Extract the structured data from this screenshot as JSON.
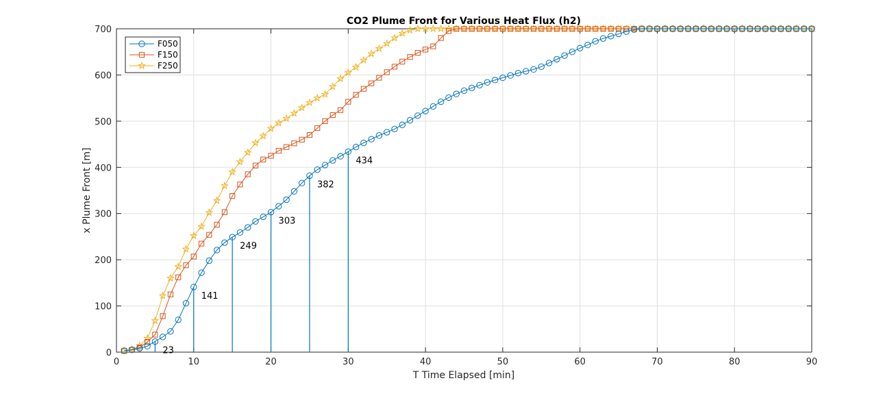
{
  "chart_data": {
    "type": "line",
    "title": "CO2 Plume Front for Various Heat Flux (h2)",
    "xlabel": "T Time Elapsed [min]",
    "ylabel": "x Plume Front [m]",
    "xlim": [
      0,
      90
    ],
    "ylim": [
      0,
      700
    ],
    "xticks": [
      0,
      10,
      20,
      30,
      40,
      50,
      60,
      70,
      80,
      90
    ],
    "yticks": [
      0,
      100,
      200,
      300,
      400,
      500,
      600,
      700
    ],
    "grid": true,
    "legend_position": "top-left",
    "x": [
      1,
      2,
      3,
      4,
      5,
      6,
      7,
      8,
      9,
      10,
      11,
      12,
      13,
      14,
      15,
      16,
      17,
      18,
      19,
      20,
      21,
      22,
      23,
      24,
      25,
      26,
      27,
      28,
      29,
      30,
      31,
      32,
      33,
      34,
      35,
      36,
      37,
      38,
      39,
      40,
      41,
      42,
      43,
      44,
      45,
      46,
      47,
      48,
      49,
      50,
      51,
      52,
      53,
      54,
      55,
      56,
      57,
      58,
      59,
      60,
      61,
      62,
      63,
      64,
      65,
      66,
      67,
      68,
      69,
      70,
      71,
      72,
      73,
      74,
      75,
      76,
      77,
      78,
      79,
      80,
      81,
      82,
      83,
      84,
      85,
      86,
      87,
      88,
      89,
      90
    ],
    "series": [
      {
        "name": "F050",
        "color": "#0072bd",
        "marker": "circle",
        "values": [
          3,
          5,
          8,
          13,
          23,
          33,
          45,
          70,
          106,
          141,
          172,
          198,
          221,
          237,
          249,
          259,
          270,
          283,
          293,
          303,
          316,
          330,
          348,
          366,
          382,
          395,
          405,
          415,
          424,
          434,
          444,
          453,
          461,
          469,
          476,
          483,
          492,
          502,
          512,
          522,
          532,
          542,
          551,
          559,
          566,
          572,
          578,
          584,
          589,
          594,
          599,
          604,
          608,
          612,
          618,
          626,
          634,
          642,
          650,
          658,
          665,
          673,
          679,
          684,
          689,
          694,
          698,
          700,
          700,
          700,
          700,
          700,
          700,
          700,
          700,
          700,
          700,
          700,
          700,
          700,
          700,
          700,
          700,
          700,
          700,
          700,
          700,
          700,
          700,
          700
        ]
      },
      {
        "name": "F150",
        "color": "#d95319",
        "marker": "square",
        "values": [
          3,
          5,
          10,
          22,
          38,
          78,
          125,
          162,
          188,
          207,
          235,
          254,
          276,
          303,
          338,
          363,
          385,
          404,
          417,
          425,
          436,
          444,
          452,
          460,
          470,
          485,
          500,
          513,
          524,
          542,
          557,
          570,
          582,
          594,
          606,
          618,
          629,
          639,
          648,
          655,
          662,
          680,
          695,
          700,
          700,
          700,
          700,
          700,
          700,
          700,
          700,
          700,
          700,
          700,
          700,
          700,
          700,
          700,
          700,
          700,
          700,
          700,
          700,
          700,
          700,
          700,
          700,
          700,
          700,
          700,
          700,
          700,
          700,
          700,
          700,
          700,
          700,
          700,
          700,
          700,
          700,
          700,
          700,
          700,
          700,
          700,
          700,
          700,
          700,
          700
        ]
      },
      {
        "name": "F250",
        "color": "#edb120",
        "marker": "star",
        "values": [
          3,
          6,
          14,
          30,
          68,
          122,
          160,
          185,
          223,
          252,
          272,
          302,
          328,
          360,
          390,
          412,
          432,
          453,
          468,
          484,
          496,
          506,
          517,
          529,
          540,
          550,
          558,
          575,
          592,
          605,
          617,
          632,
          646,
          657,
          668,
          680,
          690,
          697,
          700,
          700,
          700,
          700,
          700,
          700,
          700,
          700,
          700,
          700,
          700,
          700,
          700,
          700,
          700,
          700,
          700,
          700,
          700,
          700,
          700,
          700,
          700,
          700,
          700,
          700,
          700,
          700,
          700,
          700,
          700,
          700,
          700,
          700,
          700,
          700,
          700,
          700,
          700,
          700,
          700,
          700,
          700,
          700,
          700,
          700,
          700,
          700,
          700,
          700,
          700,
          700
        ]
      }
    ],
    "stems": {
      "series": "F050",
      "x": [
        5,
        10,
        15,
        20,
        25,
        30
      ],
      "values": [
        23,
        141,
        249,
        303,
        382,
        434
      ],
      "labels": [
        "23",
        "141",
        "249",
        "303",
        "382",
        "434"
      ]
    }
  }
}
